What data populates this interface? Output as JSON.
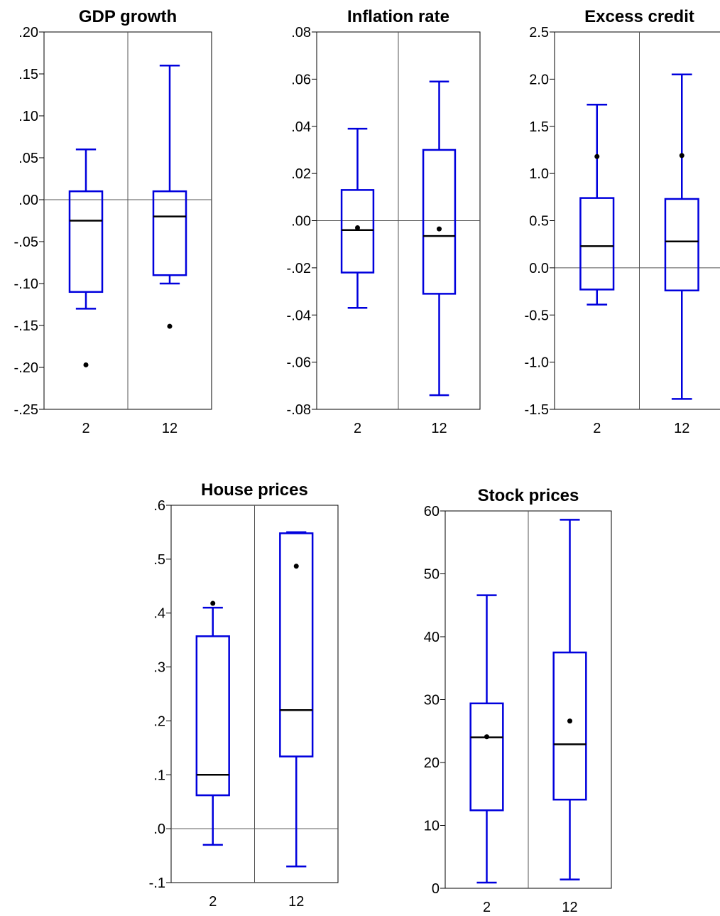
{
  "chart_data": [
    {
      "type": "boxplot",
      "title": "GDP growth",
      "categories": [
        "2",
        "12"
      ],
      "ylim": [
        -0.25,
        0.2
      ],
      "yticks": [
        0.2,
        0.15,
        0.1,
        0.05,
        0.0,
        -0.05,
        -0.1,
        -0.15,
        -0.2,
        -0.25
      ],
      "ytick_labels": [
        ".20",
        ".15",
        ".10",
        ".05",
        ".00",
        "-.05",
        "-.10",
        "-.15",
        "-.20",
        "-.25"
      ],
      "zero_line": true,
      "boxes": [
        {
          "category": "2",
          "whisker_low": -0.13,
          "q1": -0.11,
          "median": -0.025,
          "q3": 0.01,
          "whisker_high": 0.06,
          "mean": -0.197
        },
        {
          "category": "12",
          "whisker_low": -0.1,
          "q1": -0.09,
          "median": -0.02,
          "q3": 0.01,
          "whisker_high": 0.16,
          "mean": -0.151
        }
      ]
    },
    {
      "type": "boxplot",
      "title": "Inflation rate",
      "categories": [
        "2",
        "12"
      ],
      "ylim": [
        -0.08,
        0.08
      ],
      "yticks": [
        0.08,
        0.06,
        0.04,
        0.02,
        0.0,
        -0.02,
        -0.04,
        -0.06,
        -0.08
      ],
      "ytick_labels": [
        ".08",
        ".06",
        ".04",
        ".02",
        ".00",
        "-.02",
        "-.04",
        "-.06",
        "-.08"
      ],
      "zero_line": true,
      "boxes": [
        {
          "category": "2",
          "whisker_low": -0.037,
          "q1": -0.022,
          "median": -0.004,
          "q3": 0.013,
          "whisker_high": 0.039,
          "mean": -0.003
        },
        {
          "category": "12",
          "whisker_low": -0.074,
          "q1": -0.031,
          "median": -0.0065,
          "q3": 0.03,
          "whisker_high": 0.059,
          "mean": -0.0035
        }
      ]
    },
    {
      "type": "boxplot",
      "title": "Excess credit",
      "categories": [
        "2",
        "12"
      ],
      "ylim": [
        -1.5,
        2.5
      ],
      "yticks": [
        2.5,
        2.0,
        1.5,
        1.0,
        0.5,
        0.0,
        -0.5,
        -1.0,
        -1.5
      ],
      "ytick_labels": [
        "2.5",
        "2.0",
        "1.5",
        "1.0",
        "0.5",
        "0.0",
        "-0.5",
        "-1.0",
        "-1.5"
      ],
      "zero_line": true,
      "boxes": [
        {
          "category": "2",
          "whisker_low": -0.39,
          "q1": -0.23,
          "median": 0.23,
          "q3": 0.74,
          "whisker_high": 1.73,
          "mean": 1.18
        },
        {
          "category": "12",
          "whisker_low": -1.39,
          "q1": -0.24,
          "median": 0.28,
          "q3": 0.73,
          "whisker_high": 2.05,
          "mean": 1.19
        }
      ]
    },
    {
      "type": "boxplot",
      "title": "House prices",
      "categories": [
        "2",
        "12"
      ],
      "ylim": [
        -0.1,
        0.6
      ],
      "yticks": [
        0.6,
        0.5,
        0.4,
        0.3,
        0.2,
        0.1,
        0.0,
        -0.1
      ],
      "ytick_labels": [
        ".6",
        ".5",
        ".4",
        ".3",
        ".2",
        ".1",
        ".0",
        "-.1"
      ],
      "zero_line": true,
      "boxes": [
        {
          "category": "2",
          "whisker_low": -0.03,
          "q1": 0.062,
          "median": 0.1,
          "q3": 0.357,
          "whisker_high": 0.41,
          "mean": 0.418
        },
        {
          "category": "12",
          "whisker_low": -0.07,
          "q1": 0.134,
          "median": 0.22,
          "q3": 0.548,
          "whisker_high": 0.55,
          "mean": 0.487
        }
      ]
    },
    {
      "type": "boxplot",
      "title": "Stock prices",
      "categories": [
        "2",
        "12"
      ],
      "ylim": [
        0,
        60
      ],
      "yticks": [
        60,
        50,
        40,
        30,
        20,
        10,
        0
      ],
      "ytick_labels": [
        "60",
        "50",
        "40",
        "30",
        "20",
        "10",
        "0"
      ],
      "zero_line": false,
      "boxes": [
        {
          "category": "2",
          "whisker_low": 0.9,
          "q1": 12.4,
          "median": 24.0,
          "q3": 29.4,
          "whisker_high": 46.6,
          "mean": 24.1
        },
        {
          "category": "12",
          "whisker_low": 1.4,
          "q1": 14.1,
          "median": 22.9,
          "q3": 37.5,
          "whisker_high": 58.6,
          "mean": 26.6
        }
      ]
    }
  ]
}
